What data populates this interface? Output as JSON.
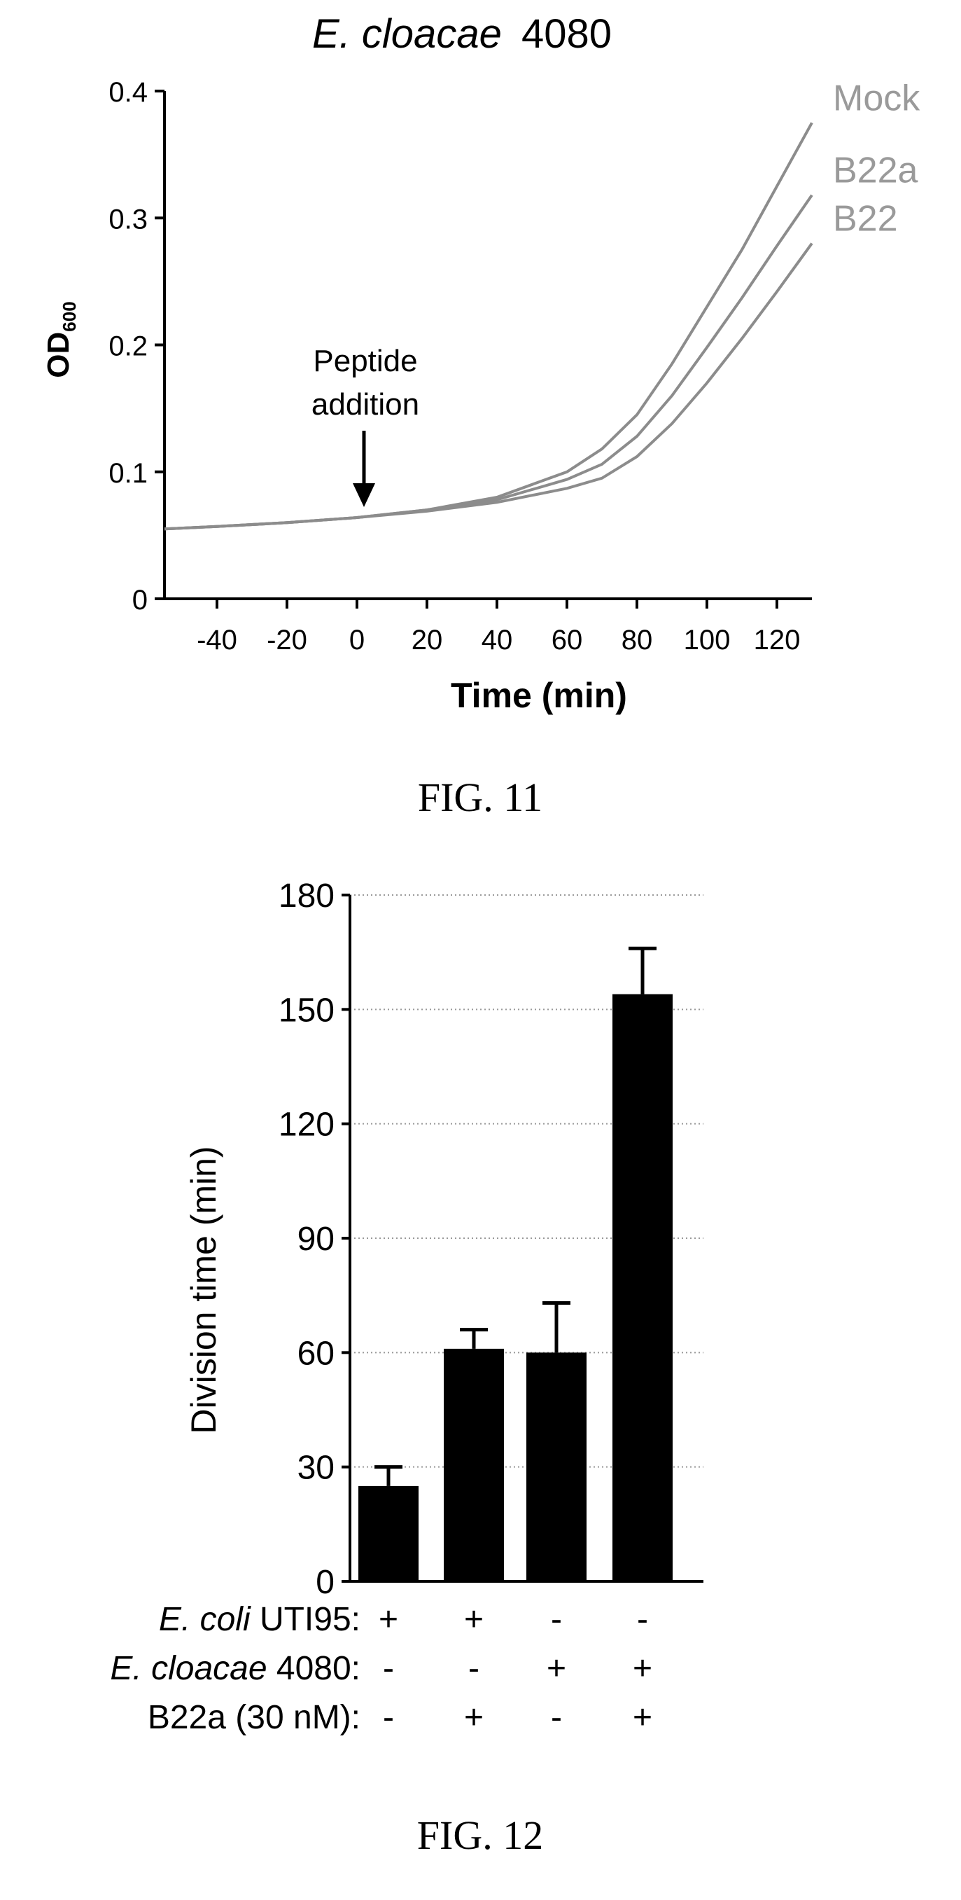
{
  "fig11": {
    "title_italic": "E. cloacae",
    "title_rest": "4080",
    "ylabel_main": "OD",
    "ylabel_sub": "600",
    "xlabel": "Time (min)",
    "annotation_line1": "Peptide",
    "annotation_line2": "addition",
    "caption": "FIG. 11"
  },
  "fig12": {
    "ylabel": "Division time (min)",
    "caption": "FIG. 12",
    "rows": [
      {
        "label_italic": "E. coli",
        "label_rest": " UTI95:",
        "signs": [
          "+",
          "+",
          "-",
          "-"
        ]
      },
      {
        "label_italic": "E. cloacae",
        "label_rest": " 4080:",
        "signs": [
          "-",
          "-",
          "+",
          "+"
        ]
      },
      {
        "label_italic": "",
        "label_rest": "B22a (30 nM):",
        "signs": [
          "-",
          "+",
          "-",
          "+"
        ]
      }
    ]
  },
  "colors": {
    "axis": "#000000",
    "curve": "#8c8c8c",
    "series_label": "#9a9a9a",
    "bar": "#000000",
    "grid": "#999999"
  },
  "chart_data": [
    {
      "type": "line",
      "title": "E. cloacae 4080",
      "xlabel": "Time (min)",
      "ylabel": "OD600",
      "xlim": [
        -55,
        130
      ],
      "ylim": [
        0,
        0.4
      ],
      "xticks": [
        -40,
        -20,
        0,
        20,
        40,
        60,
        80,
        100,
        120
      ],
      "yticks": [
        0,
        0.1,
        0.2,
        0.3,
        0.4
      ],
      "ytick_labels": [
        "0",
        "0.1",
        "0.2",
        "0.3",
        "0.4"
      ],
      "annotations": [
        {
          "text": "Peptide addition",
          "x": 0,
          "y": 0.065
        }
      ],
      "x": [
        -55,
        -40,
        -20,
        0,
        20,
        40,
        60,
        70,
        80,
        90,
        100,
        110,
        120,
        130
      ],
      "series": [
        {
          "name": "Mock",
          "values": [
            0.055,
            0.057,
            0.06,
            0.064,
            0.07,
            0.08,
            0.1,
            0.118,
            0.145,
            0.185,
            0.23,
            0.275,
            0.325,
            0.375
          ]
        },
        {
          "name": "B22a",
          "values": [
            0.055,
            0.057,
            0.06,
            0.064,
            0.07,
            0.078,
            0.094,
            0.106,
            0.128,
            0.16,
            0.198,
            0.237,
            0.278,
            0.318
          ]
        },
        {
          "name": "B22",
          "values": [
            0.055,
            0.057,
            0.06,
            0.064,
            0.069,
            0.076,
            0.087,
            0.095,
            0.112,
            0.138,
            0.17,
            0.205,
            0.242,
            0.28
          ]
        }
      ]
    },
    {
      "type": "bar",
      "xlabel": "",
      "ylabel": "Division time (min)",
      "ylim": [
        0,
        180
      ],
      "yticks": [
        0,
        30,
        60,
        90,
        120,
        150,
        180
      ],
      "grid": true,
      "categories": [
        "1",
        "2",
        "3",
        "4"
      ],
      "values": [
        25,
        61,
        60,
        154
      ],
      "errors": [
        5,
        5,
        13,
        12
      ]
    }
  ]
}
